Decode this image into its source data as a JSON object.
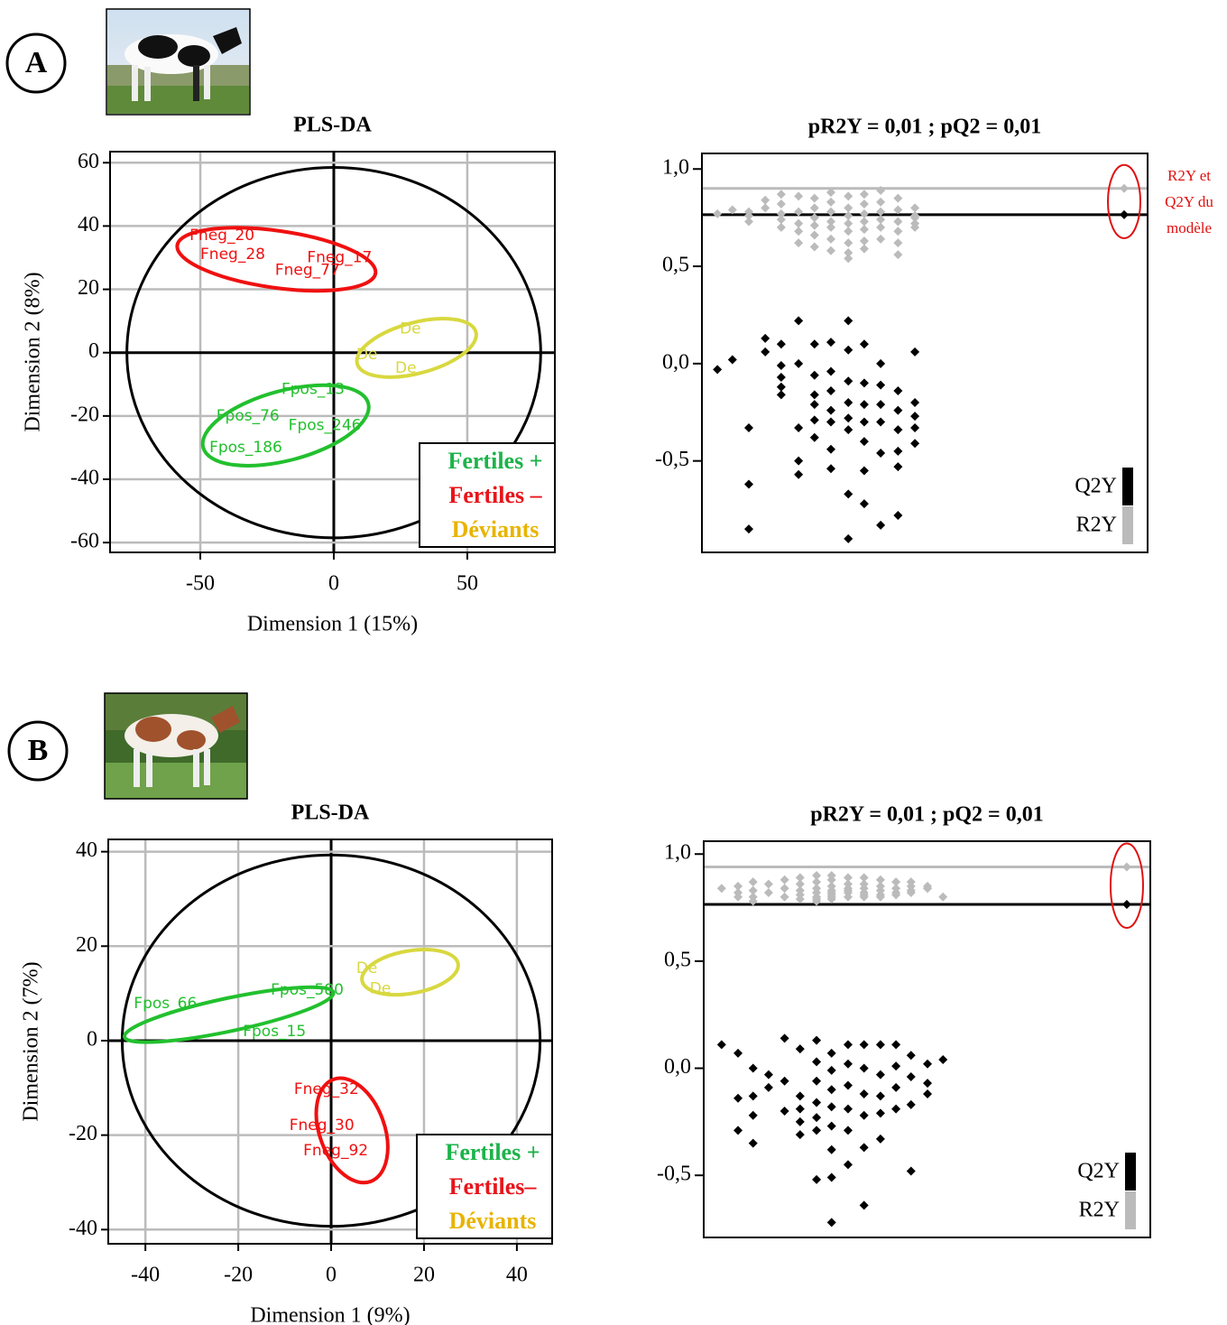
{
  "panel_labels": [
    "A",
    "B"
  ],
  "chart_data": [
    {
      "type": "scores",
      "title": "PLS-DA",
      "xlabel": "Dimension 1 (15%)",
      "ylabel": "Dimension 2 (8%)",
      "xlim": [
        -83.8,
        82.8
      ],
      "ylim": [
        -63.1,
        63.5
      ],
      "xticks": [
        -50,
        0,
        50
      ],
      "yticks": [
        -60,
        -40,
        -20,
        0,
        20,
        40,
        60
      ],
      "grid": true,
      "circle": {
        "cx": 0,
        "cy": 0,
        "rx": 77.5,
        "ry": 58.5
      },
      "legend": "lower right",
      "series": [
        {
          "name": "Fertiles +",
          "color": "#22c02e",
          "label_color": "#1db34a",
          "ellipse": {
            "cx": -18,
            "cy": -23,
            "rx": 32,
            "ry": 11,
            "angle": 15
          },
          "points": [
            {
              "label": "Fpos_13",
              "x": -19.6,
              "y": -11.7
            },
            {
              "label": "Fpos_76",
              "x": -44,
              "y": -20
            },
            {
              "label": "Fpos_246",
              "x": -17,
              "y": -23
            },
            {
              "label": "Fpos_186",
              "x": -46.6,
              "y": -30
            }
          ]
        },
        {
          "name": "Fertiles –",
          "color": "#f01010",
          "label_color": "#e8141b",
          "ellipse": {
            "cx": -21.5,
            "cy": 29.5,
            "rx": 37.5,
            "ry": 9,
            "angle": -8
          },
          "points": [
            {
              "label": "Fneg_20",
              "x": -54,
              "y": 37
            },
            {
              "label": "Fneg_28",
              "x": -50,
              "y": 31
            },
            {
              "label": "Fneg_17",
              "x": -10,
              "y": 30
            },
            {
              "label": "Fneg_77",
              "x": -22,
              "y": 26
            }
          ]
        },
        {
          "name": "Déviants",
          "color": "#d8d840",
          "label_color": "#e8b400",
          "ellipse": {
            "cx": 31,
            "cy": 1.5,
            "rx": 23,
            "ry": 8,
            "angle": 15
          },
          "points": [
            {
              "label": "De",
              "x": 24.7,
              "y": 7.4
            },
            {
              "label": "De",
              "x": 8.4,
              "y": -0.6
            },
            {
              "label": "De",
              "x": 23,
              "y": -5
            }
          ]
        }
      ]
    },
    {
      "type": "scatter",
      "title": "pR2Y = 0,01 ; pQ2 = 0,01",
      "xlim": [
        0.1,
        1.05
      ],
      "ylim": [
        -0.97,
        1.08
      ],
      "yticks": [
        {
          "value": 1.0,
          "label": "1,0"
        },
        {
          "value": 0.5,
          "label": "0,5"
        },
        {
          "value": 0,
          "label": "0,0"
        },
        {
          "value": -0.5,
          "label": "-0,5"
        }
      ],
      "annotation": [
        "R2Y et",
        "Q2Y du",
        "modèle"
      ],
      "legend": "lower right",
      "x": [
        0.133,
        0.165,
        0.2,
        0.2,
        0.2,
        0.235,
        0.235,
        0.269,
        0.269,
        0.269,
        0.269,
        0.269,
        0.306,
        0.306,
        0.306,
        0.306,
        0.306,
        0.34,
        0.34,
        0.34,
        0.34,
        0.34,
        0.34,
        0.375,
        0.375,
        0.375,
        0.375,
        0.375,
        0.375,
        0.375,
        0.412,
        0.412,
        0.412,
        0.412,
        0.412,
        0.412,
        0.412,
        0.412,
        0.446,
        0.446,
        0.446,
        0.446,
        0.446,
        0.446,
        0.446,
        0.481,
        0.481,
        0.481,
        0.481,
        0.481,
        0.481,
        0.518,
        0.518,
        0.518,
        0.518,
        0.518,
        0.518,
        0.554,
        0.554,
        0.554,
        0.554,
        0.554,
        1
      ],
      "series": [
        {
          "name": "R2Y",
          "color": "#bbbbbb",
          "values": [
            0.77,
            0.79,
            0.76,
            0.78,
            0.73,
            0.84,
            0.8,
            0.87,
            0.82,
            0.77,
            0.74,
            0.7,
            0.86,
            0.78,
            0.72,
            0.68,
            0.62,
            0.85,
            0.8,
            0.75,
            0.71,
            0.66,
            0.6,
            0.88,
            0.83,
            0.78,
            0.73,
            0.7,
            0.64,
            0.58,
            0.86,
            0.8,
            0.76,
            0.72,
            0.68,
            0.62,
            0.57,
            0.54,
            0.87,
            0.82,
            0.77,
            0.73,
            0.69,
            0.63,
            0.59,
            0.89,
            0.83,
            0.78,
            0.74,
            0.7,
            0.64,
            0.85,
            0.79,
            0.73,
            0.68,
            0.62,
            0.56,
            0.8,
            0.76,
            0.75,
            0.7,
            0.72,
            0.9
          ]
        },
        {
          "name": "Q2Y",
          "color": "#000000",
          "values": [
            -0.03,
            0.02,
            -0.33,
            -0.62,
            -0.85,
            0.13,
            0.06,
            0.1,
            -0.01,
            -0.07,
            -0.12,
            -0.16,
            0.22,
            0,
            -0.33,
            -0.5,
            -0.57,
            0.1,
            -0.06,
            -0.16,
            -0.21,
            -0.29,
            -0.38,
            0.11,
            -0.04,
            -0.14,
            -0.24,
            -0.3,
            -0.44,
            -0.54,
            0.22,
            0.07,
            -0.09,
            -0.2,
            -0.28,
            -0.34,
            -0.67,
            -0.9,
            0.1,
            -0.1,
            -0.21,
            -0.3,
            -0.4,
            -0.55,
            -0.72,
            0,
            -0.11,
            -0.21,
            -0.3,
            -0.46,
            -0.83,
            -0.14,
            -0.24,
            -0.34,
            -0.45,
            -0.53,
            -0.78,
            -0.27,
            -0.41,
            -0.2,
            -0.33,
            0.06,
            0.765
          ]
        }
      ]
    },
    {
      "type": "scores",
      "title": "PLS-DA",
      "xlabel": "Dimension 1 (9%)",
      "ylabel": "Dimension 2 (7%)",
      "xlim": [
        -48,
        47.6
      ],
      "ylim": [
        -43,
        42.6
      ],
      "xticks": [
        -40,
        -20,
        0,
        20,
        40
      ],
      "yticks": [
        -40,
        -20,
        0,
        20,
        40
      ],
      "grid": true,
      "circle": {
        "cx": 0,
        "cy": 0,
        "rx": 45,
        "ry": 39.3
      },
      "legend": "lower right",
      "series": [
        {
          "name": "Fertiles +",
          "color": "#22c02e",
          "label_color": "#1db34a",
          "ellipse": {
            "cx": -22,
            "cy": 5.5,
            "rx": 23,
            "ry": 3.5,
            "angle": 12
          },
          "points": [
            {
              "label": "Fpos_66",
              "x": -42.5,
              "y": 7.8
            },
            {
              "label": "Fpos_580",
              "x": -13,
              "y": 10.7
            },
            {
              "label": "Fpos_15",
              "x": -19,
              "y": 1.9
            }
          ]
        },
        {
          "name": "Fertiles–",
          "color": "#f01010",
          "label_color": "#e8141b",
          "ellipse": {
            "cx": 4.5,
            "cy": -19,
            "rx": 7,
            "ry": 11.5,
            "angle": 20
          },
          "points": [
            {
              "label": "Fneg_32",
              "x": -8,
              "y": -10.3
            },
            {
              "label": "Fneg_30",
              "x": -9,
              "y": -18
            },
            {
              "label": "Fneg_92",
              "x": -6,
              "y": -23.3
            }
          ]
        },
        {
          "name": "Déviants",
          "color": "#d8d840",
          "label_color": "#e8b400",
          "ellipse": {
            "cx": 17,
            "cy": 14.5,
            "rx": 10.5,
            "ry": 4.5,
            "angle": 10
          },
          "points": [
            {
              "label": "De",
              "x": 5.4,
              "y": 15.3
            },
            {
              "label": "De",
              "x": 8.3,
              "y": 11
            }
          ]
        }
      ]
    },
    {
      "type": "scatter",
      "title": "pR2Y = 0,01 ; pQ2 = 0,01",
      "xlim": [
        0.1,
        1.05
      ],
      "ylim": [
        -0.79,
        1.06
      ],
      "yticks": [
        {
          "value": 1.0,
          "label": "1,0"
        },
        {
          "value": 0.5,
          "label": "0,5"
        },
        {
          "value": 0,
          "label": "0,0"
        },
        {
          "value": -0.5,
          "label": "-0,5"
        }
      ],
      "legend": "lower right",
      "x": [
        0.138,
        0.173,
        0.173,
        0.173,
        0.205,
        0.205,
        0.205,
        0.205,
        0.238,
        0.238,
        0.272,
        0.272,
        0.272,
        0.305,
        0.305,
        0.305,
        0.305,
        0.305,
        0.34,
        0.34,
        0.34,
        0.34,
        0.34,
        0.34,
        0.34,
        0.372,
        0.372,
        0.372,
        0.372,
        0.372,
        0.372,
        0.372,
        0.372,
        0.407,
        0.407,
        0.407,
        0.407,
        0.407,
        0.407,
        0.441,
        0.441,
        0.441,
        0.441,
        0.441,
        0.441,
        0.476,
        0.476,
        0.476,
        0.476,
        0.476,
        0.509,
        0.509,
        0.509,
        0.509,
        0.541,
        0.541,
        0.541,
        0.541,
        0.576,
        0.576,
        0.576,
        0.609,
        1
      ],
      "series": [
        {
          "name": "R2Y",
          "color": "#bbbbbb",
          "values": [
            0.84,
            0.85,
            0.82,
            0.8,
            0.87,
            0.83,
            0.8,
            0.78,
            0.86,
            0.82,
            0.88,
            0.84,
            0.8,
            0.89,
            0.86,
            0.83,
            0.81,
            0.79,
            0.9,
            0.87,
            0.84,
            0.82,
            0.8,
            0.79,
            0.78,
            0.9,
            0.88,
            0.85,
            0.83,
            0.81,
            0.8,
            0.79,
            0.82,
            0.89,
            0.86,
            0.84,
            0.82,
            0.8,
            0.83,
            0.89,
            0.86,
            0.84,
            0.82,
            0.8,
            0.81,
            0.88,
            0.85,
            0.83,
            0.81,
            0.8,
            0.87,
            0.84,
            0.82,
            0.81,
            0.87,
            0.85,
            0.82,
            0.83,
            0.85,
            0.84,
            0.84,
            0.8,
            0.94
          ]
        },
        {
          "name": "Q2Y",
          "color": "#000000",
          "values": [
            0.11,
            0.07,
            -0.14,
            -0.29,
            0,
            -0.13,
            -0.22,
            -0.35,
            -0.03,
            -0.09,
            0.14,
            -0.06,
            -0.2,
            0.09,
            -0.13,
            -0.19,
            -0.25,
            -0.31,
            0.13,
            0.03,
            -0.06,
            -0.16,
            -0.23,
            -0.29,
            -0.52,
            0.07,
            -0.01,
            -0.1,
            -0.18,
            -0.27,
            -0.38,
            -0.51,
            -0.72,
            0.11,
            0.02,
            -0.08,
            -0.19,
            -0.29,
            -0.45,
            0.11,
            0,
            -0.12,
            -0.22,
            -0.37,
            -0.64,
            0.11,
            -0.03,
            -0.13,
            -0.21,
            -0.33,
            0.11,
            0.01,
            -0.09,
            -0.19,
            0.06,
            -0.04,
            -0.17,
            -0.48,
            0.02,
            -0.07,
            -0.12,
            0.04,
            0.765
          ]
        }
      ]
    }
  ]
}
